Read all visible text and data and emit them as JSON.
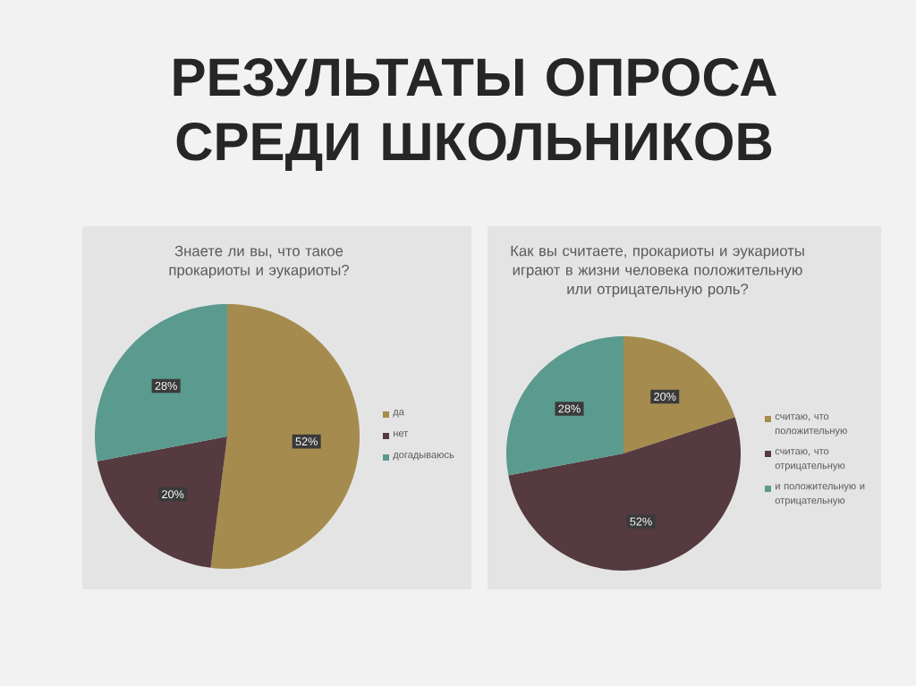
{
  "chart_data": [
    {
      "type": "other",
      "title": "РЕЗУЛЬТАТЫ ОПРОСА СРЕДИ ШКОЛЬНИКОВ"
    },
    {
      "type": "pie",
      "title": "Знаете ли вы, что такое прокариоты и эукариоты?",
      "categories": [
        "да",
        "нет",
        "догадываюсь"
      ],
      "values": [
        52,
        20,
        28
      ],
      "colors": [
        "#a58c4e",
        "#553a3f",
        "#5a9a8f"
      ],
      "value_labels": [
        "52%",
        "20%",
        "28%"
      ],
      "legend": "right"
    },
    {
      "type": "pie",
      "title": "Как вы считаете, прокариоты и эукариоты играют в жизни человека положительную или отрицательную роль?",
      "categories": [
        "считаю, что положительную",
        "считаю, что отрицательную",
        "и положительную и отрицательную"
      ],
      "values": [
        20,
        52,
        28
      ],
      "colors": [
        "#a58c4e",
        "#553a3f",
        "#5a9a8f"
      ],
      "value_labels": [
        "20%",
        "52%",
        "28%"
      ],
      "legend": "right"
    }
  ]
}
